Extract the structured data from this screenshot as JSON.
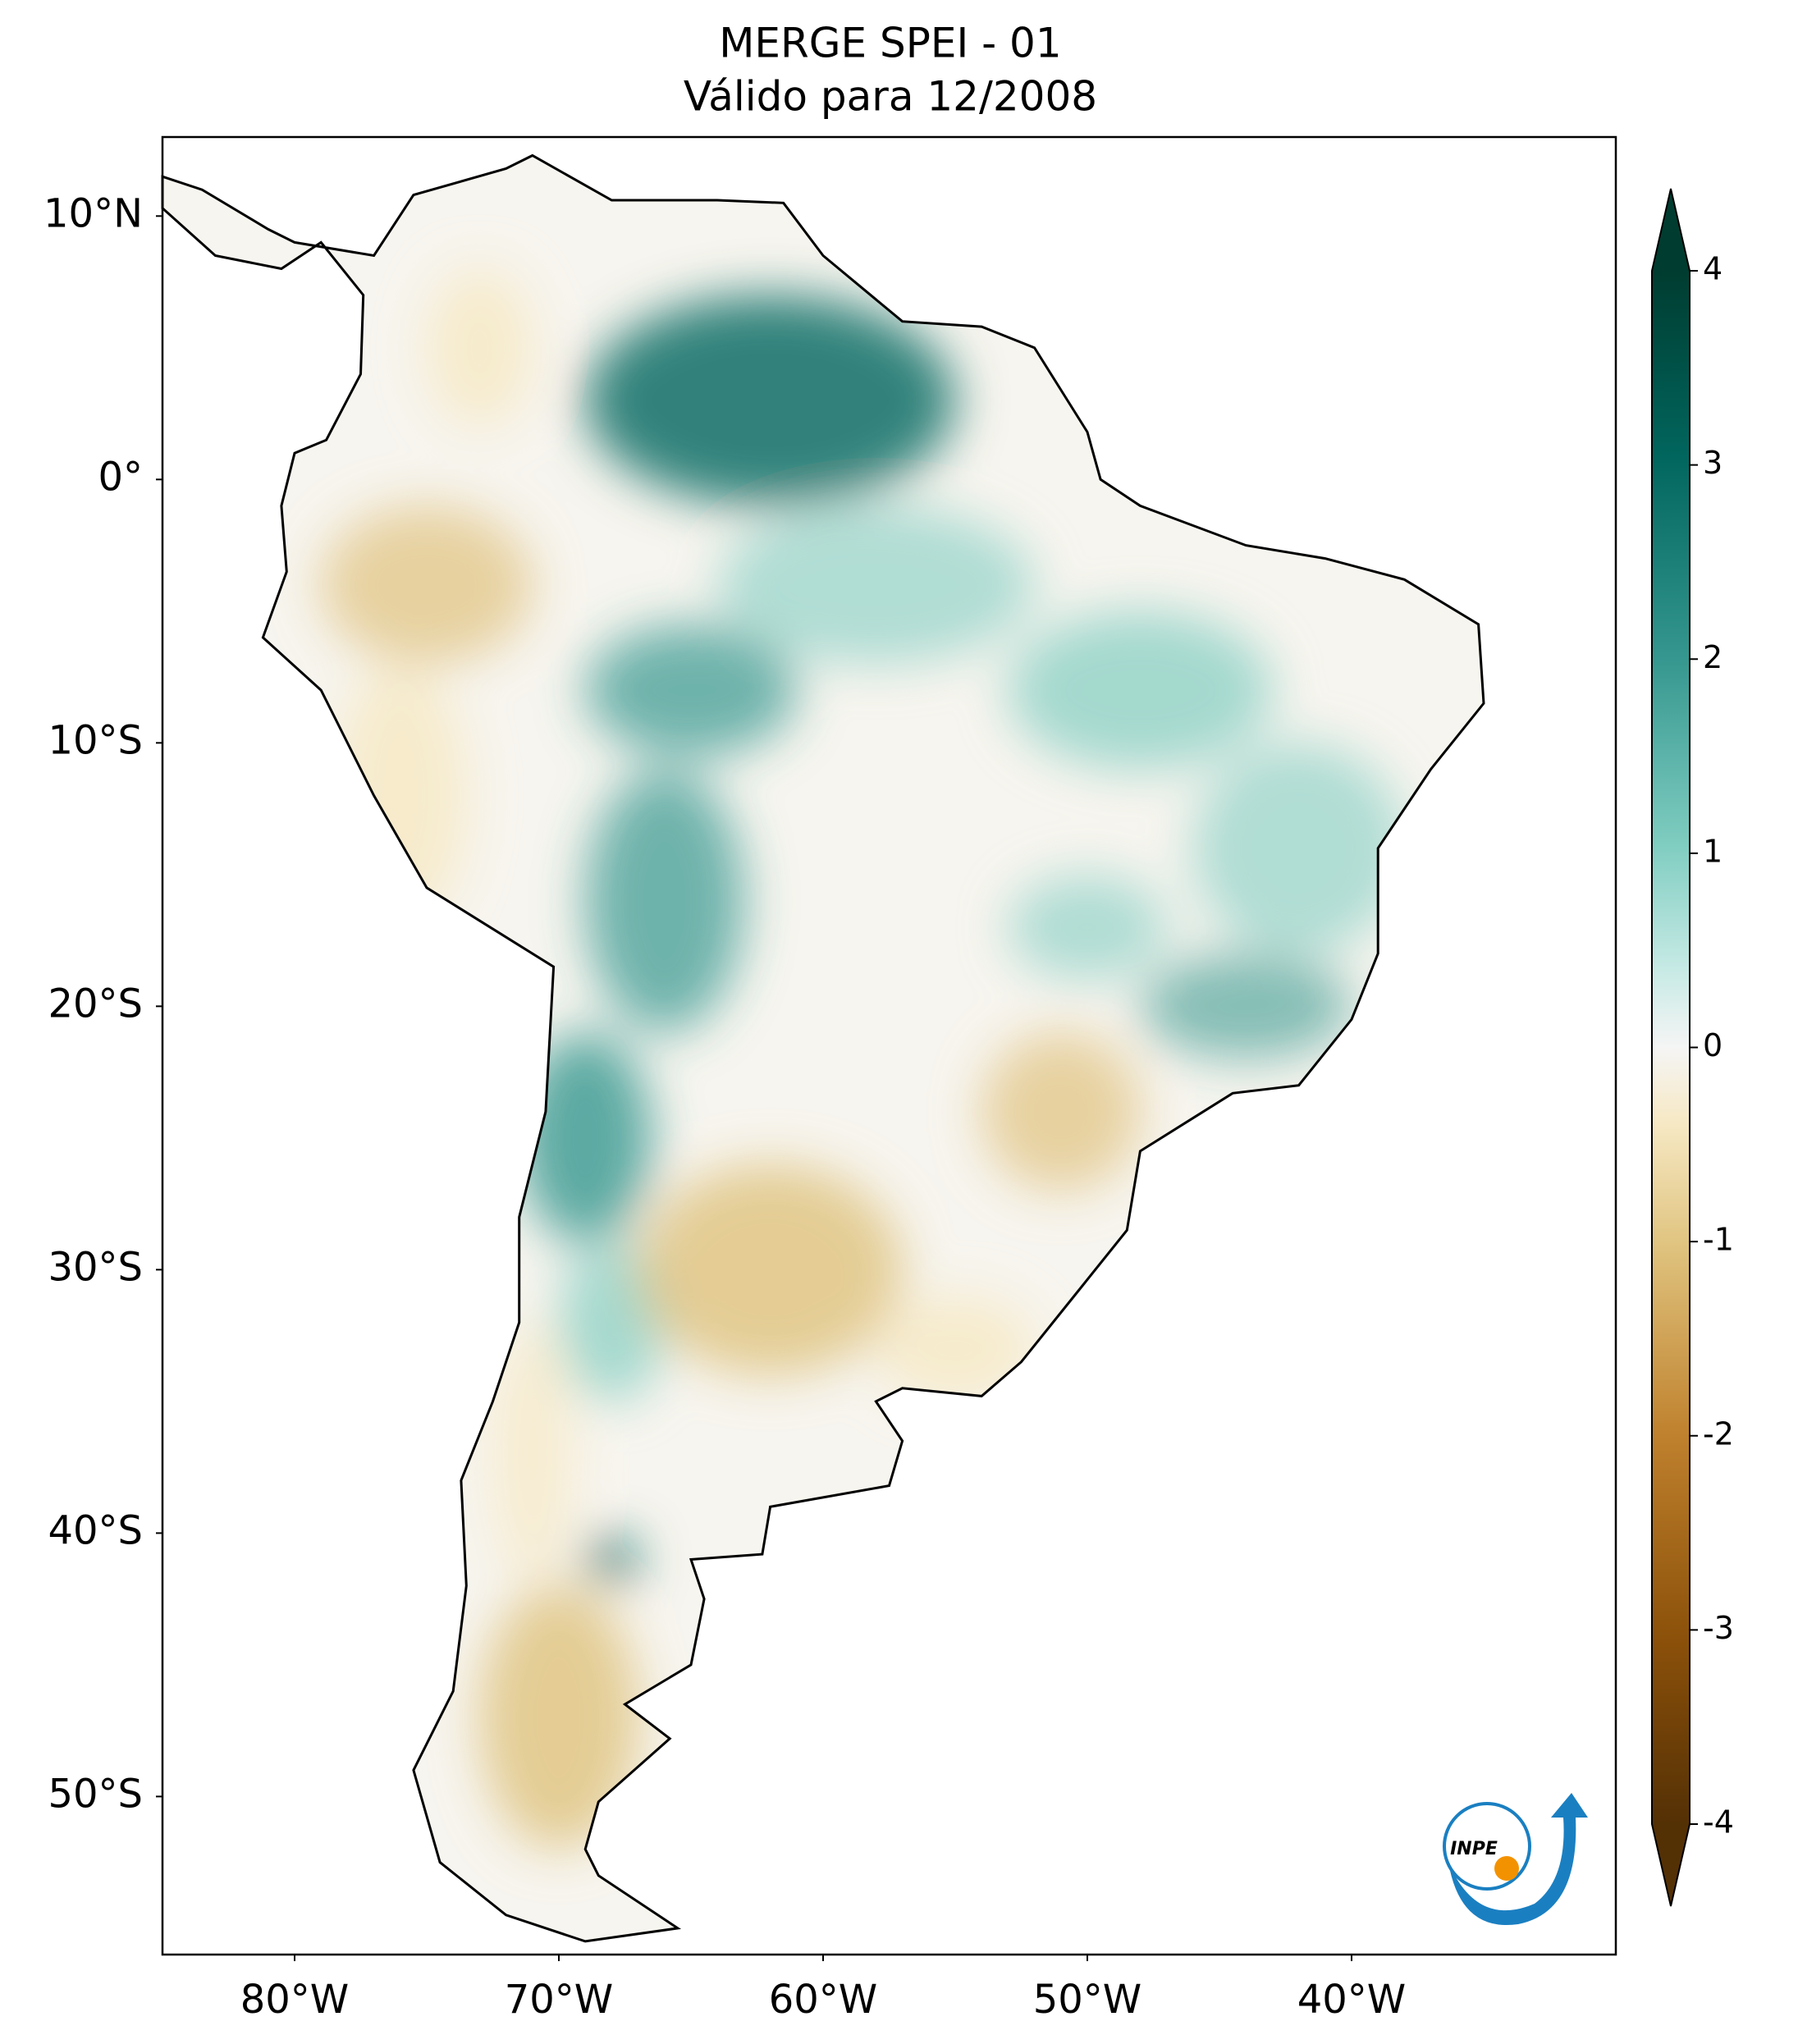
{
  "chart_data": {
    "type": "map",
    "title": "MERGE   SPEI - 01",
    "subtitle": "Válido para 12/2008",
    "xlim": [
      -85,
      -30
    ],
    "ylim": [
      -56,
      13
    ],
    "xticks": [
      {
        "value": -80,
        "label": "80°W"
      },
      {
        "value": -70,
        "label": "70°W"
      },
      {
        "value": -60,
        "label": "60°W"
      },
      {
        "value": -50,
        "label": "50°W"
      },
      {
        "value": -40,
        "label": "40°W"
      }
    ],
    "yticks": [
      {
        "value": 10,
        "label": "10°N"
      },
      {
        "value": 0,
        "label": "0°"
      },
      {
        "value": -10,
        "label": "10°S"
      },
      {
        "value": -20,
        "label": "20°S"
      },
      {
        "value": -30,
        "label": "30°S"
      },
      {
        "value": -40,
        "label": "40°S"
      },
      {
        "value": -50,
        "label": "50°S"
      }
    ],
    "colorbar": {
      "lim": [
        -4,
        4
      ],
      "ticks": [
        -4,
        -3,
        -2,
        -1,
        0,
        1,
        2,
        3,
        4
      ],
      "colormap": "BrBG",
      "extend": "both"
    },
    "logo": "INPE"
  }
}
